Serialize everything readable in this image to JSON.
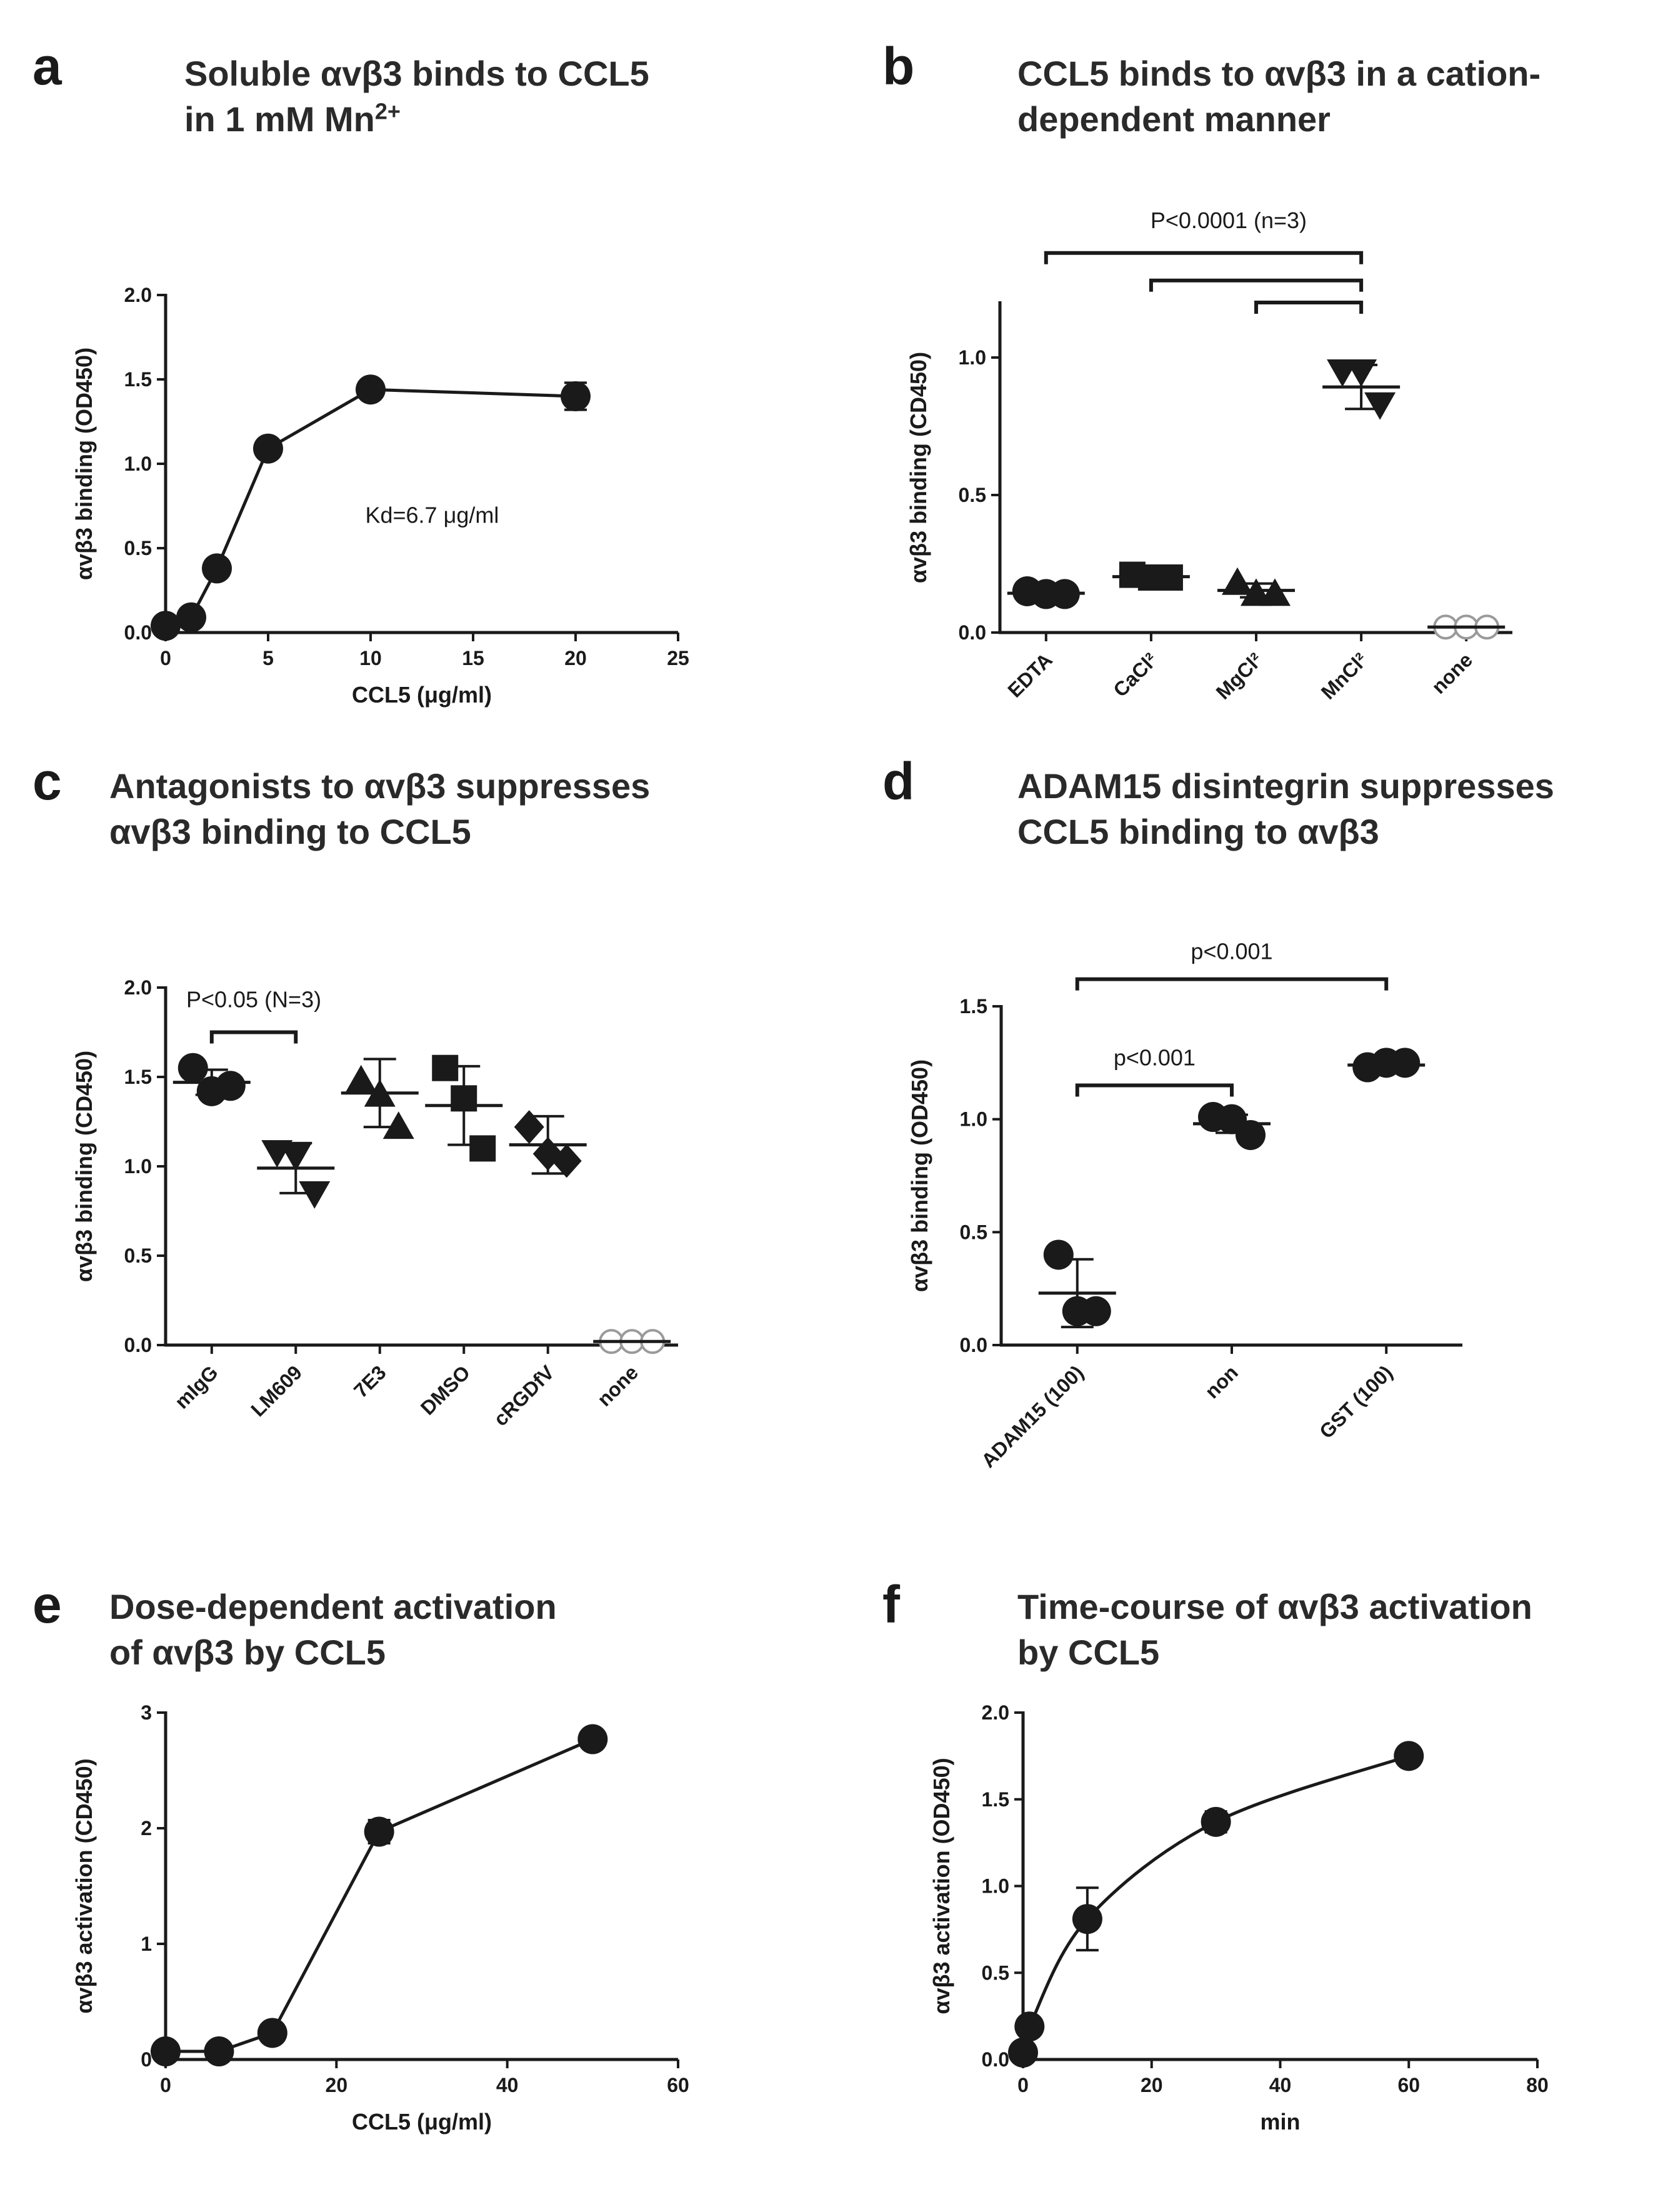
{
  "panels": {
    "a": {
      "letter": "a",
      "title1": "Soluble αvβ3 binds to CCL5",
      "title2a": "in 1 mM Mn",
      "title2sup": "2+"
    },
    "b": {
      "letter": "b",
      "title1": "CCL5 binds to αvβ3 in a cation-",
      "title2": "dependent manner"
    },
    "c": {
      "letter": "c",
      "title1": "Antagonists to αvβ3 suppresses",
      "title2": "αvβ3 binding to CCL5"
    },
    "d": {
      "letter": "d",
      "title1": "ADAM15 disintegrin suppresses",
      "title2": "CCL5 binding to αvβ3"
    },
    "e": {
      "letter": "e",
      "title1": "Dose-dependent activation",
      "title2": "of αvβ3 by CCL5"
    },
    "f": {
      "letter": "f",
      "title1": "Time-course of αvβ3 activation",
      "title2": "by CCL5"
    }
  },
  "colors": {
    "ink": "#1a1a1a",
    "open_marker": "#9a9a9a"
  },
  "chart_data": [
    {
      "id": "a",
      "type": "line",
      "marker": "circle",
      "xlabel": "CCL5 (μg/ml)",
      "ylabel": "αvβ3 binding (OD450)",
      "xlim": [
        0,
        25
      ],
      "ylim": [
        0,
        2.0
      ],
      "xticks": [
        0,
        5,
        10,
        15,
        20,
        25
      ],
      "xtick_labels": [
        "0",
        "5",
        "10",
        "15",
        "20",
        "25"
      ],
      "yticks": [
        0,
        0.5,
        1.0,
        1.5,
        2.0
      ],
      "ytick_labels": [
        "0.0",
        "0.5",
        "1.0",
        "1.5",
        "2.0"
      ],
      "x": [
        0,
        1.25,
        2.5,
        5,
        10,
        20
      ],
      "y": [
        0.04,
        0.09,
        0.38,
        1.09,
        1.44,
        1.4
      ],
      "err": [
        0,
        0,
        0,
        0,
        0,
        0.08
      ],
      "annotations": [
        {
          "text": "Kd=6.7 μg/ml",
          "x": 13,
          "y": 0.65
        }
      ]
    },
    {
      "id": "b",
      "type": "scatter",
      "ylabel": "αvβ3 binding (CD450)",
      "ylim": [
        0,
        1.2
      ],
      "yticks": [
        0,
        0.5,
        1.0
      ],
      "ytick_labels": [
        "0.0",
        "0.5",
        "1.0"
      ],
      "categories": [
        "EDTA",
        "CaCl²",
        "MgCl²",
        "MnCl²",
        "none"
      ],
      "groups": [
        {
          "marker": "circle",
          "points": [
            0.15,
            0.14,
            0.14
          ],
          "mean": 0.143,
          "sd": 0.01
        },
        {
          "marker": "square",
          "points": [
            0.21,
            0.2,
            0.2
          ],
          "mean": 0.203,
          "sd": 0.015
        },
        {
          "marker": "triangle-up",
          "points": [
            0.18,
            0.14,
            0.14
          ],
          "mean": 0.153,
          "sd": 0.025
        },
        {
          "marker": "triangle-down",
          "points": [
            0.95,
            0.95,
            0.83
          ],
          "mean": 0.893,
          "sd": 0.08
        },
        {
          "marker": "circle-open",
          "points": [
            0.02,
            0.02,
            0.02
          ],
          "mean": 0.02,
          "sd": 0.0
        }
      ],
      "significance": {
        "label": "P<0.0001 (n=3)",
        "brackets": [
          {
            "from": 0,
            "to": 3,
            "y": 1.38
          },
          {
            "from": 1,
            "to": 3,
            "y": 1.28
          },
          {
            "from": 2,
            "to": 3,
            "y": 1.2
          }
        ]
      }
    },
    {
      "id": "c",
      "type": "scatter",
      "ylabel": "αvβ3 binding (CD450)",
      "ylim": [
        0,
        2.0
      ],
      "yticks": [
        0,
        0.5,
        1.0,
        1.5,
        2.0
      ],
      "ytick_labels": [
        "0.0",
        "0.5",
        "1.0",
        "1.5",
        "2.0"
      ],
      "categories": [
        "mIgG",
        "LM609",
        "7E3",
        "DMSO",
        "cRGDfV",
        "none"
      ],
      "groups": [
        {
          "marker": "circle",
          "points": [
            1.55,
            1.42,
            1.45
          ],
          "mean": 1.47,
          "sd": 0.07
        },
        {
          "marker": "triangle-down",
          "points": [
            1.08,
            1.06,
            0.85
          ],
          "mean": 0.99,
          "sd": 0.14
        },
        {
          "marker": "triangle-up",
          "points": [
            1.48,
            1.4,
            1.22
          ],
          "mean": 1.41,
          "sd": 0.19
        },
        {
          "marker": "square",
          "points": [
            1.55,
            1.38,
            1.1
          ],
          "mean": 1.34,
          "sd": 0.22
        },
        {
          "marker": "diamond",
          "points": [
            1.22,
            1.07,
            1.03
          ],
          "mean": 1.12,
          "sd": 0.16
        },
        {
          "marker": "circle-open",
          "points": [
            0.02,
            0.02,
            0.02
          ],
          "mean": 0.02,
          "sd": 0.0
        }
      ],
      "significance": {
        "label": "P<0.05 (N=3)",
        "brackets": [
          {
            "from": 0,
            "to": 1,
            "y": 1.75
          }
        ]
      }
    },
    {
      "id": "d",
      "type": "scatter",
      "ylabel": "αvβ3 binding (OD450)",
      "ylim": [
        0,
        1.5
      ],
      "yticks": [
        0,
        0.5,
        1.0,
        1.5
      ],
      "ytick_labels": [
        "0.0",
        "0.5",
        "1.0",
        "1.5"
      ],
      "categories": [
        "ADAM15 (100)",
        "non",
        "GST (100)"
      ],
      "groups": [
        {
          "marker": "circle",
          "points": [
            0.4,
            0.15,
            0.15
          ],
          "mean": 0.23,
          "sd": 0.15
        },
        {
          "marker": "circle",
          "points": [
            1.01,
            1.0,
            0.93
          ],
          "mean": 0.98,
          "sd": 0.04
        },
        {
          "marker": "circle",
          "points": [
            1.23,
            1.25,
            1.25
          ],
          "mean": 1.24,
          "sd": 0.01
        }
      ],
      "significance": {
        "labels": [
          "p<0.001",
          "p<0.001"
        ],
        "brackets": [
          {
            "from": 0,
            "to": 2,
            "y": 1.62
          },
          {
            "from": 0,
            "to": 1,
            "y": 1.15
          }
        ]
      }
    },
    {
      "id": "e",
      "type": "line",
      "marker": "circle",
      "xlabel": "CCL5 (μg/ml)",
      "ylabel": "αvβ3 activation (CD450)",
      "xlim": [
        0,
        60
      ],
      "ylim": [
        0,
        3
      ],
      "xticks": [
        0,
        20,
        40,
        60
      ],
      "xtick_labels": [
        "0",
        "20",
        "40",
        "60"
      ],
      "yticks": [
        0,
        1,
        2,
        3
      ],
      "ytick_labels": [
        "0",
        "1",
        "2",
        "3"
      ],
      "x": [
        0,
        6.25,
        12.5,
        25,
        50
      ],
      "y": [
        0.07,
        0.07,
        0.23,
        1.97,
        2.77
      ],
      "err": [
        0,
        0,
        0,
        0.1,
        0
      ]
    },
    {
      "id": "f",
      "type": "line",
      "marker": "circle",
      "fit": "smooth curve",
      "xlabel": "min",
      "ylabel": "αvβ3 activation (OD450)",
      "xlim": [
        0,
        80
      ],
      "ylim": [
        0,
        2.0
      ],
      "xticks": [
        0,
        20,
        40,
        60,
        80
      ],
      "xtick_labels": [
        "0",
        "20",
        "40",
        "60",
        "80"
      ],
      "yticks": [
        0,
        0.5,
        1.0,
        1.5,
        2.0
      ],
      "ytick_labels": [
        "0.0",
        "0.5",
        "1.0",
        "1.5",
        "2.0"
      ],
      "x": [
        0,
        1,
        10,
        30,
        60
      ],
      "y": [
        0.04,
        0.19,
        0.81,
        1.37,
        1.75
      ],
      "err": [
        0,
        0,
        0.18,
        0.06,
        0.05
      ]
    }
  ]
}
